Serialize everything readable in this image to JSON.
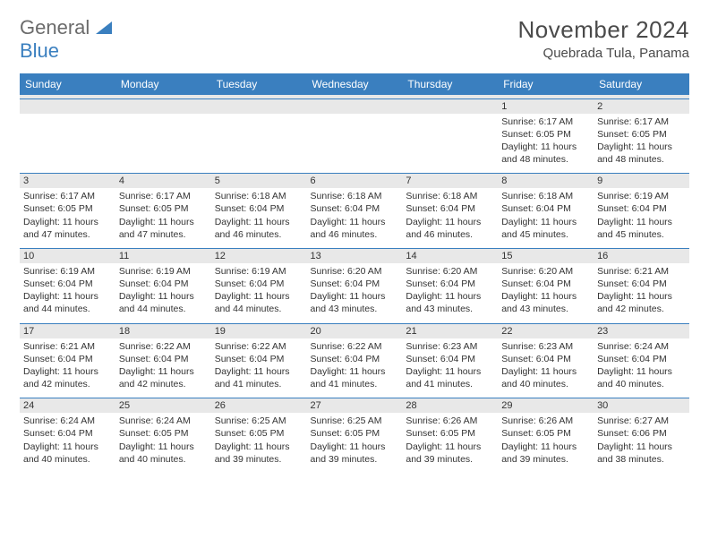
{
  "logo": {
    "part1": "General",
    "part2": "Blue"
  },
  "title": "November 2024",
  "location": "Quebrada Tula, Panama",
  "colors": {
    "header_bg": "#3a7fbf",
    "header_text": "#ffffff",
    "daynum_bg": "#e8e8e8",
    "border": "#3a7fbf",
    "body_text": "#333333",
    "logo_gray": "#6b6b6b",
    "logo_blue": "#3a7fbf"
  },
  "typography": {
    "title_fontsize": 26,
    "location_fontsize": 15,
    "dayhead_fontsize": 12,
    "daynum_fontsize": 11,
    "daytext_fontsize": 10.5
  },
  "day_names": [
    "Sunday",
    "Monday",
    "Tuesday",
    "Wednesday",
    "Thursday",
    "Friday",
    "Saturday"
  ],
  "weeks": [
    [
      null,
      null,
      null,
      null,
      null,
      {
        "n": "1",
        "sr": "6:17 AM",
        "ss": "6:05 PM",
        "dl": "11 hours and 48 minutes."
      },
      {
        "n": "2",
        "sr": "6:17 AM",
        "ss": "6:05 PM",
        "dl": "11 hours and 48 minutes."
      }
    ],
    [
      {
        "n": "3",
        "sr": "6:17 AM",
        "ss": "6:05 PM",
        "dl": "11 hours and 47 minutes."
      },
      {
        "n": "4",
        "sr": "6:17 AM",
        "ss": "6:05 PM",
        "dl": "11 hours and 47 minutes."
      },
      {
        "n": "5",
        "sr": "6:18 AM",
        "ss": "6:04 PM",
        "dl": "11 hours and 46 minutes."
      },
      {
        "n": "6",
        "sr": "6:18 AM",
        "ss": "6:04 PM",
        "dl": "11 hours and 46 minutes."
      },
      {
        "n": "7",
        "sr": "6:18 AM",
        "ss": "6:04 PM",
        "dl": "11 hours and 46 minutes."
      },
      {
        "n": "8",
        "sr": "6:18 AM",
        "ss": "6:04 PM",
        "dl": "11 hours and 45 minutes."
      },
      {
        "n": "9",
        "sr": "6:19 AM",
        "ss": "6:04 PM",
        "dl": "11 hours and 45 minutes."
      }
    ],
    [
      {
        "n": "10",
        "sr": "6:19 AM",
        "ss": "6:04 PM",
        "dl": "11 hours and 44 minutes."
      },
      {
        "n": "11",
        "sr": "6:19 AM",
        "ss": "6:04 PM",
        "dl": "11 hours and 44 minutes."
      },
      {
        "n": "12",
        "sr": "6:19 AM",
        "ss": "6:04 PM",
        "dl": "11 hours and 44 minutes."
      },
      {
        "n": "13",
        "sr": "6:20 AM",
        "ss": "6:04 PM",
        "dl": "11 hours and 43 minutes."
      },
      {
        "n": "14",
        "sr": "6:20 AM",
        "ss": "6:04 PM",
        "dl": "11 hours and 43 minutes."
      },
      {
        "n": "15",
        "sr": "6:20 AM",
        "ss": "6:04 PM",
        "dl": "11 hours and 43 minutes."
      },
      {
        "n": "16",
        "sr": "6:21 AM",
        "ss": "6:04 PM",
        "dl": "11 hours and 42 minutes."
      }
    ],
    [
      {
        "n": "17",
        "sr": "6:21 AM",
        "ss": "6:04 PM",
        "dl": "11 hours and 42 minutes."
      },
      {
        "n": "18",
        "sr": "6:22 AM",
        "ss": "6:04 PM",
        "dl": "11 hours and 42 minutes."
      },
      {
        "n": "19",
        "sr": "6:22 AM",
        "ss": "6:04 PM",
        "dl": "11 hours and 41 minutes."
      },
      {
        "n": "20",
        "sr": "6:22 AM",
        "ss": "6:04 PM",
        "dl": "11 hours and 41 minutes."
      },
      {
        "n": "21",
        "sr": "6:23 AM",
        "ss": "6:04 PM",
        "dl": "11 hours and 41 minutes."
      },
      {
        "n": "22",
        "sr": "6:23 AM",
        "ss": "6:04 PM",
        "dl": "11 hours and 40 minutes."
      },
      {
        "n": "23",
        "sr": "6:24 AM",
        "ss": "6:04 PM",
        "dl": "11 hours and 40 minutes."
      }
    ],
    [
      {
        "n": "24",
        "sr": "6:24 AM",
        "ss": "6:04 PM",
        "dl": "11 hours and 40 minutes."
      },
      {
        "n": "25",
        "sr": "6:24 AM",
        "ss": "6:05 PM",
        "dl": "11 hours and 40 minutes."
      },
      {
        "n": "26",
        "sr": "6:25 AM",
        "ss": "6:05 PM",
        "dl": "11 hours and 39 minutes."
      },
      {
        "n": "27",
        "sr": "6:25 AM",
        "ss": "6:05 PM",
        "dl": "11 hours and 39 minutes."
      },
      {
        "n": "28",
        "sr": "6:26 AM",
        "ss": "6:05 PM",
        "dl": "11 hours and 39 minutes."
      },
      {
        "n": "29",
        "sr": "6:26 AM",
        "ss": "6:05 PM",
        "dl": "11 hours and 39 minutes."
      },
      {
        "n": "30",
        "sr": "6:27 AM",
        "ss": "6:06 PM",
        "dl": "11 hours and 38 minutes."
      }
    ]
  ],
  "labels": {
    "sunrise": "Sunrise: ",
    "sunset": "Sunset: ",
    "daylight": "Daylight: "
  }
}
